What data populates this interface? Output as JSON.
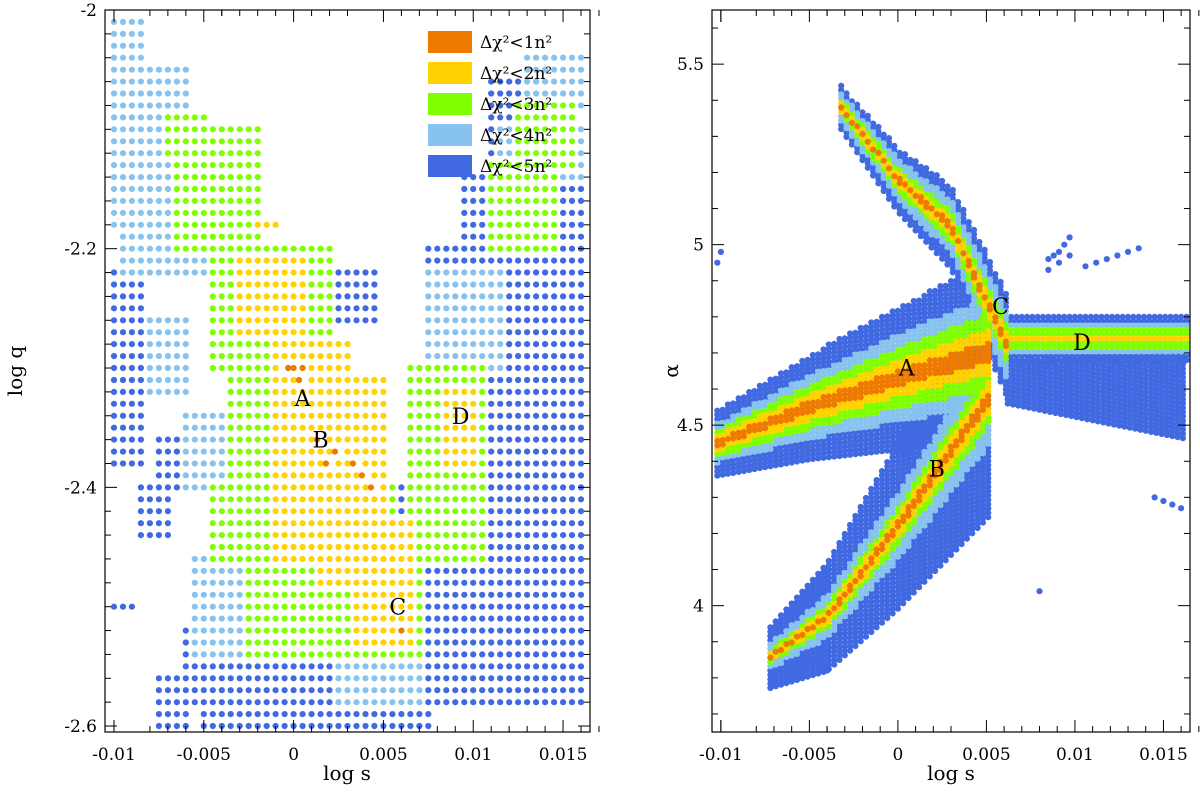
{
  "figure_title": "",
  "chart_data": [
    {
      "type": "scatter",
      "title": "",
      "xlabel": "log s",
      "ylabel": "log q",
      "xlim": [
        -0.0105,
        0.0165
      ],
      "ylim": [
        -2.605,
        -2.0
      ],
      "x_ticks": [
        -0.01,
        -0.005,
        0,
        0.005,
        0.01,
        0.015
      ],
      "x_tick_labels": [
        "-0.01",
        "-0.005",
        "0",
        "0.005",
        "0.01",
        "0.015"
      ],
      "y_ticks": [
        -2.6,
        -2.4,
        -2.2,
        -2.0
      ],
      "y_tick_labels": [
        "-2.6",
        "-2.4",
        "-2.2",
        "-2"
      ],
      "grid": false,
      "legend_position": "top-right",
      "legend": [
        {
          "key": "l1",
          "label": "Δχ²<1n²",
          "color": "#ee7a00"
        },
        {
          "key": "l2",
          "label": "Δχ²<2n²",
          "color": "#ffd200"
        },
        {
          "key": "l3",
          "label": "Δχ²<3n²",
          "color": "#7fff00"
        },
        {
          "key": "l4",
          "label": "Δχ²<4n²",
          "color": "#87c3ee"
        },
        {
          "key": "l5",
          "label": "Δχ²<5n²",
          "color": "#4169e1"
        }
      ],
      "annotations": [
        {
          "text": "A",
          "x": 0.0005,
          "y": -2.325
        },
        {
          "text": "B",
          "x": 0.0015,
          "y": -2.36
        },
        {
          "text": "C",
          "x": 0.0058,
          "y": -2.5
        },
        {
          "text": "D",
          "x": 0.0093,
          "y": -2.34
        }
      ],
      "grid_step_x": 0.0005,
      "grid_step_y": 0.01,
      "series": [
        {
          "name": "Δχ²<1n²",
          "level": 1,
          "points": [
            [
              -0.0003,
              -2.3
            ],
            [
              0.0,
              -2.3
            ],
            [
              0.0003,
              -2.31
            ],
            [
              0.0005,
              -2.3
            ],
            [
              0.0013,
              -2.36
            ],
            [
              0.0018,
              -2.38
            ],
            [
              0.0023,
              -2.37
            ],
            [
              0.0033,
              -2.38
            ],
            [
              0.0038,
              -2.39
            ],
            [
              0.0043,
              -2.4
            ],
            [
              0.006,
              -2.52
            ]
          ]
        },
        {
          "name": "Δχ²<2n²",
          "level": 2,
          "cells": [
            [
              -0.0022,
              -2.18,
              -0.0012,
              -2.18
            ],
            [
              -0.0032,
              -2.21,
              0.0003,
              -2.27
            ],
            [
              -0.0012,
              -2.28,
              0.0028,
              -2.46
            ],
            [
              0.0013,
              -2.31,
              0.0048,
              -2.48
            ],
            [
              0.0033,
              -2.43,
              0.0063,
              -2.53
            ],
            [
              0.0083,
              -2.32,
              0.0098,
              -2.38
            ]
          ]
        },
        {
          "name": "Δχ²<3n²",
          "level": 3,
          "cells": [
            [
              -0.0072,
              -2.09,
              -0.0052,
              -2.12
            ],
            [
              -0.0067,
              -2.1,
              -0.0022,
              -2.2
            ],
            [
              -0.0047,
              -2.2,
              0.0018,
              -2.3
            ],
            [
              -0.0037,
              -2.29,
              0.0023,
              -2.4
            ],
            [
              -0.0047,
              -2.4,
              0.0053,
              -2.46
            ],
            [
              -0.0027,
              -2.46,
              0.0068,
              -2.54
            ],
            [
              0.0063,
              -2.3,
              0.0103,
              -2.46
            ],
            [
              0.0108,
              -2.13,
              0.0143,
              -2.2
            ],
            [
              0.0123,
              -2.08,
              0.0153,
              -2.13
            ]
          ]
        },
        {
          "name": "Δχ²<4n²",
          "level": 4,
          "cells": [
            [
              -0.0102,
              -2.01,
              -0.0087,
              -2.04
            ],
            [
              -0.0102,
              -2.05,
              -0.0062,
              -2.12
            ],
            [
              -0.0102,
              -2.12,
              -0.0042,
              -2.18
            ],
            [
              -0.0097,
              -2.18,
              -0.0032,
              -2.22
            ],
            [
              -0.0082,
              -2.26,
              -0.0062,
              -2.32
            ],
            [
              -0.0062,
              -2.34,
              -0.0042,
              -2.4
            ],
            [
              -0.0057,
              -2.46,
              0.0033,
              -2.54
            ],
            [
              0.0023,
              -2.5,
              0.0068,
              -2.58
            ],
            [
              0.0073,
              -2.22,
              0.0113,
              -2.3
            ],
            [
              0.0113,
              -2.1,
              0.0158,
              -2.14
            ],
            [
              0.0128,
              -2.04,
              0.0158,
              -2.08
            ]
          ]
        },
        {
          "name": "Δχ²<5n²",
          "level": 5,
          "cells": [
            [
              -0.0102,
              -2.22,
              -0.0087,
              -2.38
            ],
            [
              -0.0087,
              -2.4,
              -0.0072,
              -2.44
            ],
            [
              -0.0077,
              -2.36,
              -0.0052,
              -2.4
            ],
            [
              -0.0057,
              -2.46,
              -0.0042,
              -2.52
            ],
            [
              -0.0062,
              -2.52,
              0.0023,
              -2.58
            ],
            [
              -0.0052,
              -2.56,
              0.0068,
              -2.6
            ],
            [
              -0.0027,
              -2.5,
              0.0073,
              -2.6
            ],
            [
              0.0053,
              -2.4,
              0.0158,
              -2.58
            ],
            [
              0.0073,
              -2.2,
              0.0158,
              -2.4
            ],
            [
              0.0093,
              -2.14,
              0.0158,
              -2.22
            ],
            [
              0.0108,
              -2.06,
              0.0128,
              -2.12
            ],
            [
              0.0008,
              -2.22,
              0.0023,
              -2.26
            ],
            [
              0.0028,
              -2.22,
              0.0043,
              -2.26
            ],
            [
              0.0033,
              -2.24,
              0.0043,
              -2.26
            ],
            [
              -0.0102,
              -2.5,
              -0.0092,
              -2.5
            ],
            [
              -0.0077,
              -2.56,
              -0.0062,
              -2.6
            ]
          ]
        }
      ]
    },
    {
      "type": "scatter",
      "title": "",
      "xlabel": "log s",
      "ylabel": "α",
      "xlim": [
        -0.0105,
        0.0165
      ],
      "ylim": [
        3.65,
        5.65
      ],
      "x_ticks": [
        -0.01,
        -0.005,
        0,
        0.005,
        0.01,
        0.015
      ],
      "x_tick_labels": [
        "-0.01",
        "-0.005",
        "0",
        "0.005",
        "0.01",
        "0.015"
      ],
      "y_ticks": [
        4.0,
        4.5,
        5.0,
        5.5
      ],
      "y_tick_labels": [
        "4",
        "4.5",
        "5",
        "5.5"
      ],
      "grid": false,
      "annotations": [
        {
          "text": "A",
          "x": 0.0005,
          "y": 4.66
        },
        {
          "text": "B",
          "x": 0.0022,
          "y": 4.38
        },
        {
          "text": "C",
          "x": 0.0058,
          "y": 4.83
        },
        {
          "text": "D",
          "x": 0.0104,
          "y": 4.73
        }
      ],
      "x_step": 0.0003,
      "branches": [
        {
          "name": "A-branch",
          "x_from": -0.0102,
          "x_to": 0.0052,
          "center": [
            [
              -0.0102,
              4.45
            ],
            [
              -0.005,
              4.55
            ],
            [
              0.0,
              4.63
            ],
            [
              0.005,
              4.7
            ]
          ],
          "halfwidths": [
            0.02,
            0.045,
            0.075,
            0.11,
            0.18
          ],
          "widen": [
            0.5,
            1.4
          ]
        },
        {
          "name": "B-branch",
          "x_from": -0.0072,
          "x_to": 0.0052,
          "center": [
            [
              -0.0072,
              3.86
            ],
            [
              -0.004,
              3.97
            ],
            [
              0.0,
              4.22
            ],
            [
              0.0052,
              4.58
            ]
          ],
          "halfwidths": [
            0.012,
            0.03,
            0.05,
            0.09,
            0.22
          ],
          "widen": [
            0.4,
            1.5
          ]
        },
        {
          "name": "C-branch",
          "x_from": -0.0032,
          "x_to": 0.0062,
          "center": [
            [
              -0.0032,
              5.38
            ],
            [
              0.0,
              5.18
            ],
            [
              0.003,
              5.05
            ],
            [
              0.0062,
              4.72
            ]
          ],
          "halfwidths": [
            0.01,
            0.025,
            0.045,
            0.08,
            0.12
          ],
          "widen": [
            0.5,
            1.2
          ]
        },
        {
          "name": "D-branch",
          "x_from": 0.0058,
          "x_to": 0.0165,
          "center": [
            [
              0.0058,
              4.74
            ],
            [
              0.0165,
              4.74
            ]
          ],
          "halfwidths": [
            0.0,
            0.01,
            0.025,
            0.04,
            0.06
          ],
          "widen": [
            1.0,
            1.0
          ]
        },
        {
          "name": "D-lower",
          "x_from": 0.0062,
          "x_to": 0.0165,
          "center": [
            [
              0.0062,
              4.62
            ],
            [
              0.0165,
              4.58
            ]
          ],
          "halfwidths": [
            0,
            0,
            0,
            0,
            0.1
          ],
          "widen": [
            0.6,
            1.2
          ]
        }
      ],
      "scatter_extra": [
        {
          "level": 5,
          "points": [
            [
              0.0085,
              4.96
            ],
            [
              0.0088,
              4.97
            ],
            [
              0.0091,
              4.98
            ],
            [
              0.0094,
              5.0
            ],
            [
              0.0097,
              5.02
            ],
            [
              0.0085,
              4.93
            ],
            [
              0.0091,
              4.95
            ],
            [
              0.0097,
              4.97
            ],
            [
              0.0106,
              4.94
            ],
            [
              0.0112,
              4.95
            ],
            [
              0.0118,
              4.96
            ],
            [
              0.0124,
              4.97
            ],
            [
              0.013,
              4.98
            ],
            [
              0.0136,
              4.99
            ],
            [
              0.0145,
              4.3
            ],
            [
              0.015,
              4.29
            ],
            [
              0.0155,
              4.28
            ],
            [
              0.016,
              4.27
            ],
            [
              0.008,
              4.04
            ],
            [
              -0.004,
              3.82
            ],
            [
              -0.007,
              3.83
            ],
            [
              -0.01,
              4.98
            ],
            [
              -0.0102,
              4.95
            ]
          ]
        }
      ]
    }
  ]
}
